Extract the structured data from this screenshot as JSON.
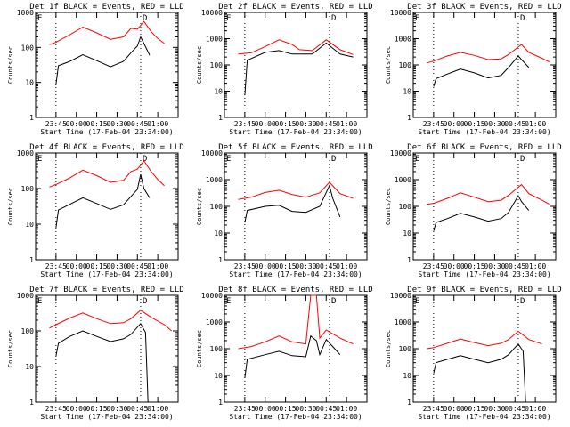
{
  "chart_data": {
    "type": "line",
    "time_ticks": [
      "23:45",
      "00:00",
      "00:15",
      "00:30",
      "00:45",
      "01:00"
    ],
    "xlabel": "Start Time (17-Feb-04 23:34:00)",
    "ylabel": "Counts/sec",
    "colors": {
      "events": "#000000",
      "lld": "#ff0000"
    },
    "panels": [
      {
        "title": "Det 1f BLACK = Events, RED = LLD",
        "ylim": [
          1,
          1000
        ],
        "yticks": [
          "1",
          "10",
          "100",
          "1000"
        ],
        "marker_e": "E",
        "marker_d": "D",
        "lld": [
          [
            23.67,
            120
          ],
          [
            23.75,
            140
          ],
          [
            23.92,
            230
          ],
          [
            24.08,
            380
          ],
          [
            24.25,
            260
          ],
          [
            24.42,
            170
          ],
          [
            24.58,
            200
          ],
          [
            24.67,
            350
          ],
          [
            24.75,
            330
          ],
          [
            24.83,
            550
          ],
          [
            24.92,
            280
          ],
          [
            25.0,
            180
          ],
          [
            25.08,
            130
          ]
        ],
        "events": [
          [
            23.75,
            9
          ],
          [
            23.78,
            30
          ],
          [
            23.92,
            40
          ],
          [
            24.08,
            62
          ],
          [
            24.25,
            42
          ],
          [
            24.42,
            28
          ],
          [
            24.58,
            40
          ],
          [
            24.67,
            70
          ],
          [
            24.75,
            110
          ],
          [
            24.79,
            200
          ],
          [
            24.83,
            130
          ],
          [
            24.9,
            60
          ]
        ]
      },
      {
        "title": "Det 2f BLACK = Events, RED = LLD",
        "ylim": [
          1,
          10000
        ],
        "yticks": [
          "1",
          "10",
          "100",
          "1000",
          "10000"
        ],
        "marker_e": "E",
        "marker_d": "D",
        "lld": [
          [
            23.67,
            260
          ],
          [
            23.83,
            290
          ],
          [
            24.0,
            500
          ],
          [
            24.17,
            900
          ],
          [
            24.33,
            600
          ],
          [
            24.42,
            380
          ],
          [
            24.58,
            350
          ],
          [
            24.75,
            900
          ],
          [
            24.92,
            380
          ],
          [
            25.08,
            250
          ]
        ],
        "events": [
          [
            23.75,
            7
          ],
          [
            23.78,
            150
          ],
          [
            24.0,
            300
          ],
          [
            24.17,
            350
          ],
          [
            24.33,
            260
          ],
          [
            24.58,
            260
          ],
          [
            24.75,
            680
          ],
          [
            24.92,
            260
          ],
          [
            25.08,
            200
          ]
        ]
      },
      {
        "title": "Det 3f BLACK = Events, RED = LLD",
        "ylim": [
          1,
          10000
        ],
        "yticks": [
          "1",
          "10",
          "100",
          "1000",
          "10000"
        ],
        "marker_e": "E",
        "marker_d": "D",
        "lld": [
          [
            23.67,
            120
          ],
          [
            23.75,
            140
          ],
          [
            23.92,
            220
          ],
          [
            24.08,
            300
          ],
          [
            24.25,
            230
          ],
          [
            24.42,
            160
          ],
          [
            24.58,
            170
          ],
          [
            24.67,
            250
          ],
          [
            24.83,
            600
          ],
          [
            24.92,
            300
          ],
          [
            25.08,
            180
          ],
          [
            25.17,
            130
          ]
        ],
        "events": [
          [
            23.75,
            15
          ],
          [
            23.78,
            30
          ],
          [
            23.92,
            45
          ],
          [
            24.08,
            70
          ],
          [
            24.25,
            50
          ],
          [
            24.42,
            32
          ],
          [
            24.58,
            40
          ],
          [
            24.67,
            80
          ],
          [
            24.79,
            220
          ],
          [
            24.83,
            160
          ],
          [
            24.92,
            80
          ]
        ]
      },
      {
        "title": "Det 4f BLACK = Events, RED = LLD",
        "ylim": [
          1,
          1000
        ],
        "yticks": [
          "1",
          "10",
          "100",
          "1000"
        ],
        "marker_e": "E",
        "marker_d": "D",
        "lld": [
          [
            23.67,
            110
          ],
          [
            23.75,
            130
          ],
          [
            23.92,
            200
          ],
          [
            24.08,
            330
          ],
          [
            24.25,
            230
          ],
          [
            24.42,
            150
          ],
          [
            24.58,
            170
          ],
          [
            24.67,
            300
          ],
          [
            24.75,
            350
          ],
          [
            24.83,
            600
          ],
          [
            24.92,
            300
          ],
          [
            25.0,
            180
          ],
          [
            25.08,
            120
          ]
        ],
        "events": [
          [
            23.75,
            8
          ],
          [
            23.78,
            25
          ],
          [
            23.92,
            36
          ],
          [
            24.08,
            55
          ],
          [
            24.25,
            38
          ],
          [
            24.42,
            26
          ],
          [
            24.58,
            35
          ],
          [
            24.67,
            60
          ],
          [
            24.75,
            95
          ],
          [
            24.79,
            250
          ],
          [
            24.83,
            100
          ],
          [
            24.9,
            55
          ]
        ]
      },
      {
        "title": "Det 5f BLACK = Events, RED = LLD",
        "ylim": [
          1,
          10000
        ],
        "yticks": [
          "1",
          "10",
          "100",
          "1000",
          "10000"
        ],
        "marker_e": "E",
        "marker_d": "D",
        "lld": [
          [
            23.67,
            180
          ],
          [
            23.83,
            220
          ],
          [
            24.0,
            330
          ],
          [
            24.17,
            400
          ],
          [
            24.33,
            280
          ],
          [
            24.5,
            220
          ],
          [
            24.67,
            320
          ],
          [
            24.79,
            800
          ],
          [
            24.92,
            300
          ],
          [
            25.08,
            200
          ]
        ],
        "events": [
          [
            23.75,
            25
          ],
          [
            23.78,
            70
          ],
          [
            24.0,
            100
          ],
          [
            24.17,
            110
          ],
          [
            24.33,
            65
          ],
          [
            24.5,
            60
          ],
          [
            24.67,
            100
          ],
          [
            24.79,
            600
          ],
          [
            24.83,
            200
          ],
          [
            24.92,
            40
          ]
        ]
      },
      {
        "title": "Det 6f BLACK = Events, RED = LLD",
        "ylim": [
          1,
          10000
        ],
        "yticks": [
          "1",
          "10",
          "100",
          "1000",
          "10000"
        ],
        "marker_e": "E",
        "marker_d": "D",
        "lld": [
          [
            23.67,
            120
          ],
          [
            23.75,
            130
          ],
          [
            23.92,
            200
          ],
          [
            24.08,
            320
          ],
          [
            24.25,
            220
          ],
          [
            24.42,
            150
          ],
          [
            24.58,
            170
          ],
          [
            24.67,
            260
          ],
          [
            24.83,
            650
          ],
          [
            24.92,
            300
          ],
          [
            25.08,
            170
          ],
          [
            25.17,
            120
          ]
        ],
        "events": [
          [
            23.75,
            12
          ],
          [
            23.78,
            25
          ],
          [
            23.92,
            35
          ],
          [
            24.08,
            55
          ],
          [
            24.25,
            40
          ],
          [
            24.42,
            28
          ],
          [
            24.58,
            35
          ],
          [
            24.67,
            60
          ],
          [
            24.79,
            250
          ],
          [
            24.83,
            150
          ],
          [
            24.92,
            70
          ]
        ]
      },
      {
        "title": "Det 7f BLACK = Events, RED = LLD",
        "ylim": [
          1,
          1000
        ],
        "yticks": [
          "1",
          "10",
          "100",
          "1000"
        ],
        "marker_e": "E",
        "marker_d": "D",
        "lld": [
          [
            23.67,
            120
          ],
          [
            23.75,
            150
          ],
          [
            23.92,
            230
          ],
          [
            24.08,
            320
          ],
          [
            24.25,
            220
          ],
          [
            24.42,
            160
          ],
          [
            24.58,
            170
          ],
          [
            24.67,
            220
          ],
          [
            24.79,
            380
          ],
          [
            24.92,
            240
          ],
          [
            25.08,
            150
          ],
          [
            25.17,
            100
          ]
        ],
        "events": [
          [
            23.75,
            20
          ],
          [
            23.78,
            45
          ],
          [
            23.92,
            70
          ],
          [
            24.08,
            100
          ],
          [
            24.25,
            70
          ],
          [
            24.42,
            50
          ],
          [
            24.58,
            60
          ],
          [
            24.67,
            80
          ],
          [
            24.79,
            160
          ],
          [
            24.85,
            90
          ],
          [
            24.88,
            1
          ]
        ]
      },
      {
        "title": "Det 8f BLACK = Events, RED = LLD",
        "ylim": [
          1,
          10000
        ],
        "yticks": [
          "1",
          "10",
          "100",
          "1000",
          "10000"
        ],
        "marker_e": "E",
        "marker_d": "D",
        "lld": [
          [
            23.67,
            100
          ],
          [
            23.83,
            120
          ],
          [
            24.0,
            180
          ],
          [
            24.17,
            300
          ],
          [
            24.33,
            180
          ],
          [
            24.5,
            150
          ],
          [
            24.56,
            10000
          ],
          [
            24.63,
            10000
          ],
          [
            24.67,
            250
          ],
          [
            24.75,
            500
          ],
          [
            24.92,
            250
          ],
          [
            25.08,
            150
          ]
        ],
        "events": [
          [
            23.75,
            8
          ],
          [
            23.78,
            40
          ],
          [
            24.0,
            60
          ],
          [
            24.17,
            80
          ],
          [
            24.33,
            55
          ],
          [
            24.5,
            50
          ],
          [
            24.56,
            300
          ],
          [
            24.63,
            200
          ],
          [
            24.67,
            60
          ],
          [
            24.75,
            220
          ],
          [
            24.83,
            120
          ],
          [
            24.92,
            60
          ]
        ]
      },
      {
        "title": "Det 9f BLACK = Events, RED = LLD",
        "ylim": [
          1,
          10000
        ],
        "yticks": [
          "1",
          "10",
          "100",
          "1000",
          "10000"
        ],
        "marker_e": "E",
        "marker_d": "D",
        "lld": [
          [
            23.67,
            100
          ],
          [
            23.75,
            110
          ],
          [
            23.92,
            160
          ],
          [
            24.08,
            230
          ],
          [
            24.25,
            170
          ],
          [
            24.42,
            130
          ],
          [
            24.58,
            160
          ],
          [
            24.67,
            220
          ],
          [
            24.79,
            450
          ],
          [
            24.92,
            220
          ],
          [
            25.08,
            150
          ]
        ],
        "events": [
          [
            23.75,
            12
          ],
          [
            23.78,
            30
          ],
          [
            23.92,
            40
          ],
          [
            24.08,
            55
          ],
          [
            24.25,
            40
          ],
          [
            24.42,
            30
          ],
          [
            24.58,
            40
          ],
          [
            24.67,
            60
          ],
          [
            24.79,
            150
          ],
          [
            24.85,
            80
          ],
          [
            24.88,
            1
          ]
        ]
      }
    ],
    "x_range": [
      23.5,
      25.25
    ],
    "x_tick_hours": [
      23.75,
      24.0,
      24.25,
      24.5,
      24.75,
      25.0
    ],
    "grid": false
  }
}
